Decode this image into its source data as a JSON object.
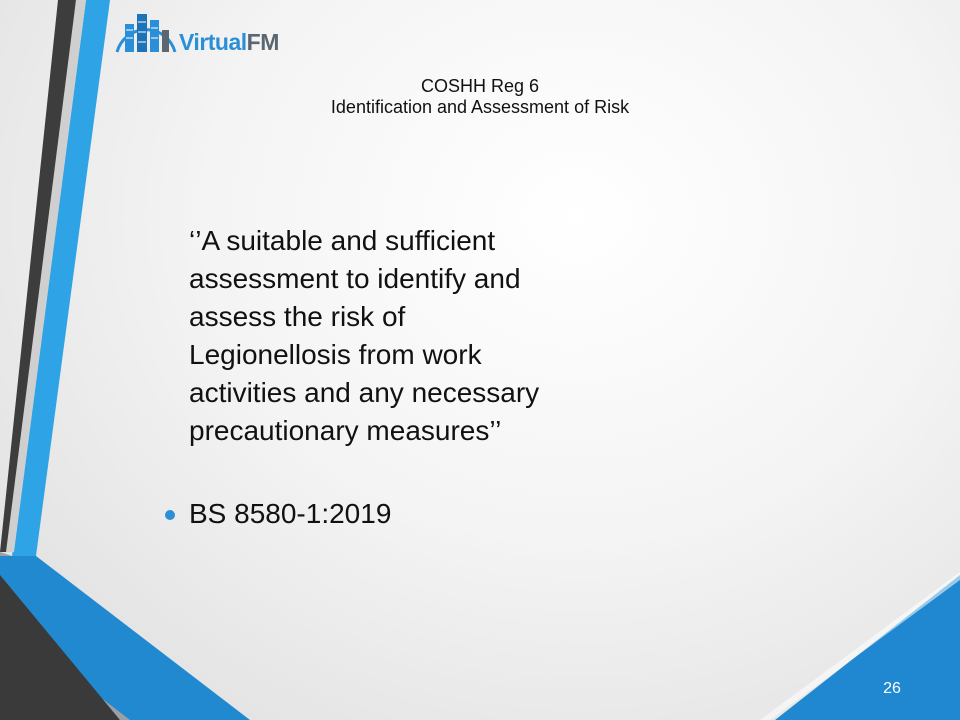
{
  "logo": {
    "name_part1": "Virtual",
    "name_part2": "FM",
    "icon": "building-logo-icon",
    "color_primary": "#2a8fd6",
    "color_secondary": "#5a6670"
  },
  "title": {
    "line1": "COSHH Reg 6",
    "line2": "Identification and Assessment of Risk"
  },
  "body": {
    "quote": "‘’A suitable and sufficient\nassessment to identify and\nassess the risk of\nLegionellosis from work\nactivities and any necessary\nprecautionary measures’’",
    "bullets": [
      {
        "text": "BS 8580-1:2019",
        "icon": "bullet-dot-icon"
      }
    ]
  },
  "footer": {
    "page_number": "26"
  },
  "theme": {
    "accent_blue": "#2a8fd6",
    "dark_grey": "#3a3a3a",
    "text_color": "#111111"
  }
}
